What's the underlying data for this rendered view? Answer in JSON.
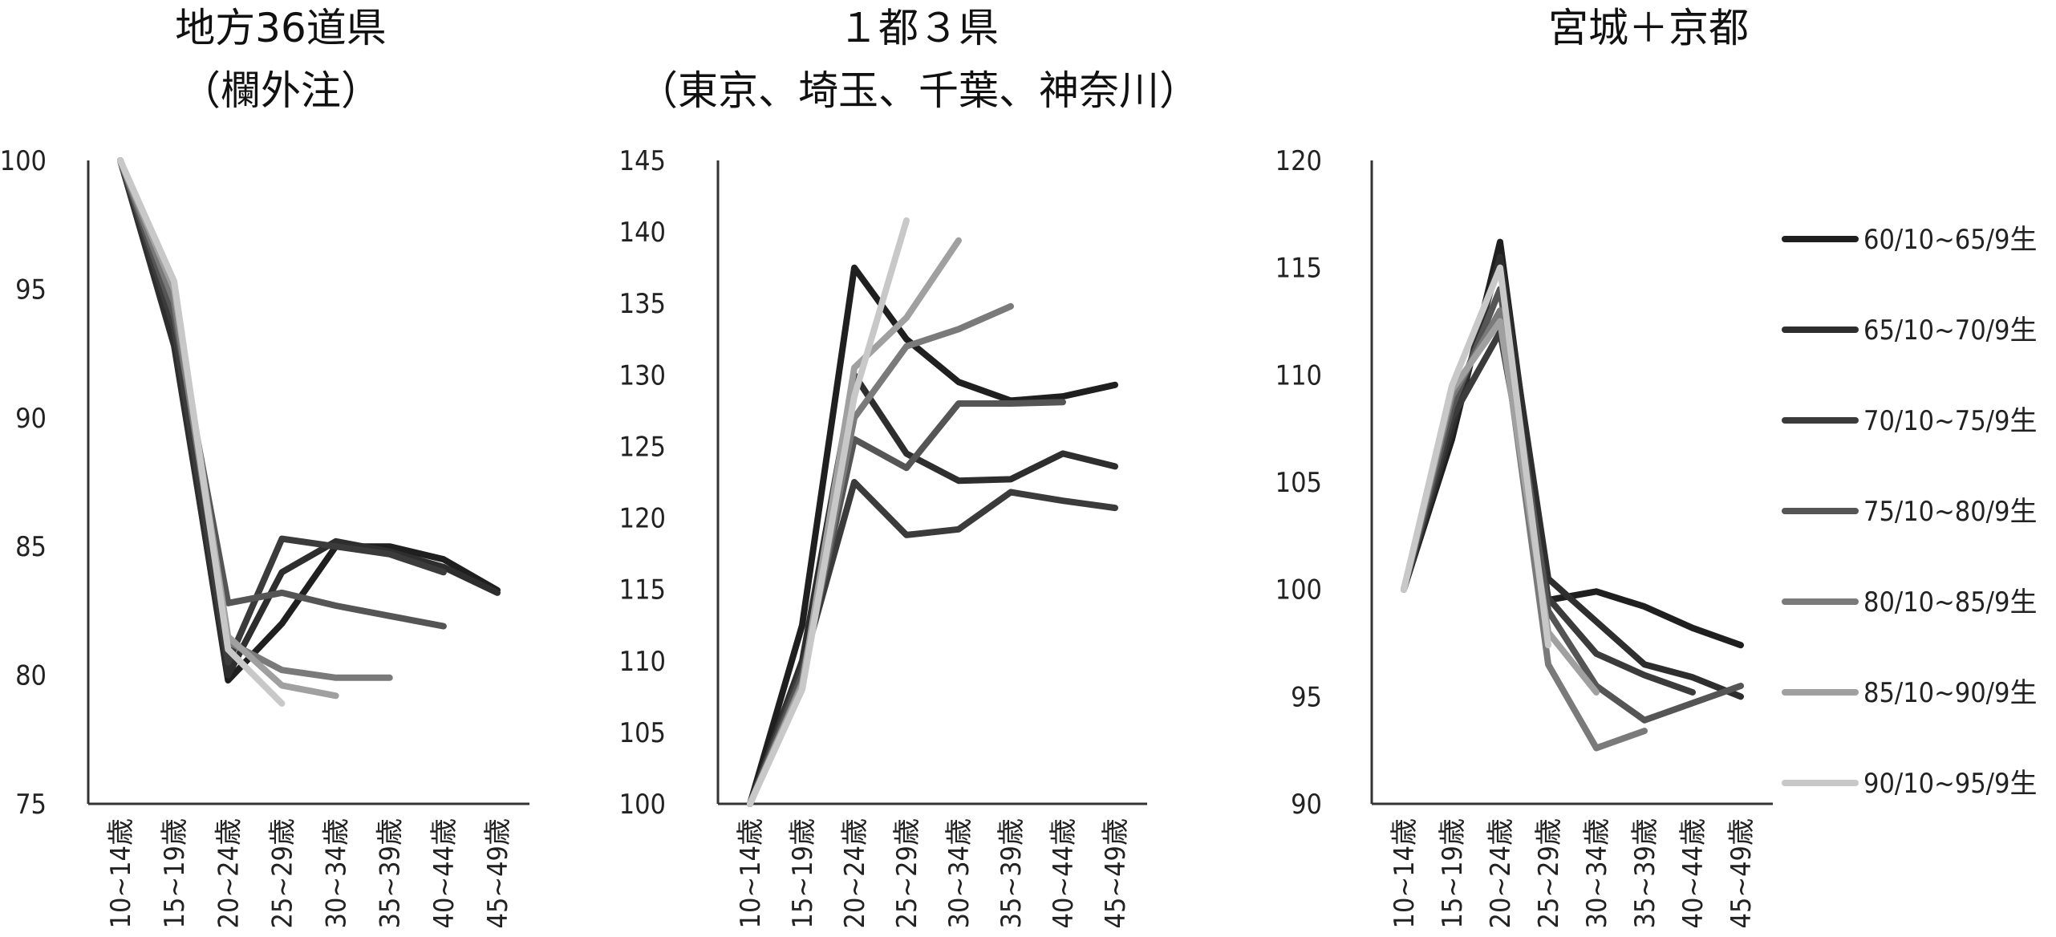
{
  "chart_data": [
    {
      "type": "line",
      "title": "地方36道県",
      "subtitle": "（欄外注）",
      "categories": [
        "10~14歳",
        "15~19歳",
        "20~24歳",
        "25~29歳",
        "30~34歳",
        "35~39歳",
        "40~44歳",
        "45~49歳"
      ],
      "yticks": [
        "75",
        "80",
        "85",
        "90",
        "95",
        "100"
      ],
      "ylim": [
        75,
        100
      ],
      "series": [
        {
          "name": "60/10~65/9生",
          "color": "#1f1f1f",
          "values": [
            100,
            93.0,
            79.8,
            82.0,
            85.0,
            85.0,
            84.5,
            83.3
          ]
        },
        {
          "name": "65/10~70/9生",
          "color": "#2e2e2e",
          "values": [
            100,
            92.8,
            80.0,
            84.0,
            85.2,
            84.8,
            84.2,
            83.2
          ]
        },
        {
          "name": "70/10~75/9生",
          "color": "#3b3b3b",
          "values": [
            100,
            93.5,
            80.5,
            85.3,
            85.0,
            84.7,
            84.0,
            null
          ]
        },
        {
          "name": "75/10~80/9生",
          "color": "#555555",
          "values": [
            100,
            94.0,
            82.8,
            83.2,
            82.7,
            82.3,
            81.9,
            null
          ]
        },
        {
          "name": "80/10~85/9生",
          "color": "#7a7a7a",
          "values": [
            100,
            94.5,
            81.3,
            80.2,
            79.9,
            79.9,
            null,
            null
          ]
        },
        {
          "name": "85/10~90/9生",
          "color": "#a0a0a0",
          "values": [
            100,
            95.0,
            81.5,
            79.6,
            79.2,
            null,
            null,
            null
          ]
        },
        {
          "name": "90/10~95/9生",
          "color": "#c8c8c8",
          "values": [
            100,
            95.3,
            81.0,
            78.9,
            null,
            null,
            null,
            null
          ]
        }
      ]
    },
    {
      "type": "line",
      "title": "１都３県",
      "subtitle": "（東京、埼玉、千葉、神奈川）",
      "categories": [
        "10~14歳",
        "15~19歳",
        "20~24歳",
        "25~29歳",
        "30~34歳",
        "35~39歳",
        "40~44歳",
        "45~49歳"
      ],
      "yticks": [
        "100",
        "105",
        "110",
        "115",
        "120",
        "125",
        "130",
        "135",
        "140",
        "145"
      ],
      "ylim": [
        100,
        145
      ],
      "series": [
        {
          "name": "60/10~65/9生",
          "color": "#1f1f1f",
          "values": [
            100,
            112.5,
            137.5,
            132.5,
            129.5,
            128.2,
            128.5,
            129.3
          ]
        },
        {
          "name": "65/10~70/9生",
          "color": "#2e2e2e",
          "values": [
            100,
            110.0,
            130.0,
            124.5,
            122.6,
            122.7,
            124.5,
            123.6
          ]
        },
        {
          "name": "70/10~75/9生",
          "color": "#3b3b3b",
          "values": [
            100,
            109.5,
            122.5,
            118.8,
            119.2,
            121.8,
            121.2,
            120.7
          ]
        },
        {
          "name": "75/10~80/9生",
          "color": "#555555",
          "values": [
            100,
            109.0,
            125.5,
            123.5,
            128.0,
            128.0,
            128.1,
            null
          ]
        },
        {
          "name": "80/10~85/9生",
          "color": "#7a7a7a",
          "values": [
            100,
            108.5,
            127.0,
            132.0,
            133.2,
            134.8,
            null,
            null
          ]
        },
        {
          "name": "85/10~90/9生",
          "color": "#a0a0a0",
          "values": [
            100,
            108.3,
            130.5,
            134.0,
            139.4,
            null,
            null,
            null
          ]
        },
        {
          "name": "90/10~95/9生",
          "color": "#c8c8c8",
          "values": [
            100,
            108.0,
            128.5,
            140.8,
            null,
            null,
            null,
            null
          ]
        }
      ]
    },
    {
      "type": "line",
      "title": "宮城＋京都",
      "subtitle": "",
      "categories": [
        "10~14歳",
        "15~19歳",
        "20~24歳",
        "25~29歳",
        "30~34歳",
        "35~39歳",
        "40~44歳",
        "45~49歳"
      ],
      "yticks": [
        "90",
        "95",
        "100",
        "105",
        "110",
        "115",
        "120"
      ],
      "ylim": [
        90,
        120
      ],
      "series": [
        {
          "name": "60/10~65/9生",
          "color": "#1f1f1f",
          "values": [
            100,
            107.0,
            116.2,
            99.5,
            99.9,
            99.2,
            98.2,
            97.4
          ]
        },
        {
          "name": "65/10~70/9生",
          "color": "#2e2e2e",
          "values": [
            100,
            107.5,
            115.5,
            100.5,
            98.5,
            96.5,
            95.9,
            95.0
          ]
        },
        {
          "name": "70/10~75/9生",
          "color": "#3b3b3b",
          "values": [
            100,
            108.0,
            112.0,
            99.6,
            97.0,
            96.0,
            95.2,
            null
          ]
        },
        {
          "name": "75/10~80/9生",
          "color": "#555555",
          "values": [
            100,
            108.5,
            114.0,
            99.0,
            95.5,
            93.9,
            94.7,
            95.5
          ]
        },
        {
          "name": "80/10~85/9生",
          "color": "#7a7a7a",
          "values": [
            100,
            109.0,
            113.0,
            96.5,
            92.6,
            93.4,
            null,
            null
          ]
        },
        {
          "name": "85/10~90/9生",
          "color": "#a0a0a0",
          "values": [
            100,
            109.3,
            112.5,
            98.0,
            95.2,
            null,
            null,
            null
          ]
        },
        {
          "name": "90/10~95/9生",
          "color": "#c8c8c8",
          "values": [
            100,
            109.5,
            115.0,
            97.4,
            null,
            null,
            null,
            null
          ]
        }
      ]
    }
  ],
  "legend": {
    "placement": "right",
    "items": [
      {
        "label": "60/10~65/9生",
        "color": "#1f1f1f"
      },
      {
        "label": "65/10~70/9生",
        "color": "#2e2e2e"
      },
      {
        "label": "70/10~75/9生",
        "color": "#3b3b3b"
      },
      {
        "label": "75/10~80/9生",
        "color": "#555555"
      },
      {
        "label": "80/10~85/9生",
        "color": "#7a7a7a"
      },
      {
        "label": "85/10~90/9生",
        "color": "#a0a0a0"
      },
      {
        "label": "90/10~95/9生",
        "color": "#c8c8c8"
      }
    ]
  }
}
